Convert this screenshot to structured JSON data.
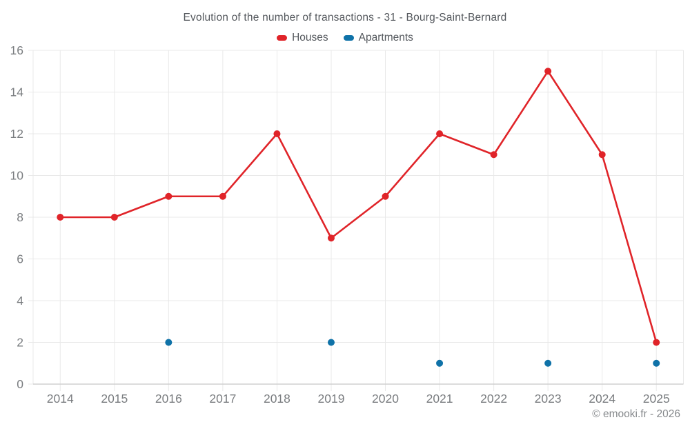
{
  "header": {
    "title": "Evolution of the number of transactions - 31 - Bourg-Saint-Bernard"
  },
  "legend": [
    {
      "label": "Houses",
      "color": "#e02429"
    },
    {
      "label": "Apartments",
      "color": "#0f72a8"
    }
  ],
  "footer": {
    "copyright": "© emooki.fr - 2026"
  },
  "colors": {
    "houses": "#e02429",
    "apartments": "#0f72a8",
    "grid": "#e9e9e9",
    "axis_line": "#cfcfcf",
    "axis_text": "#7a7d80",
    "title_text": "#54585d",
    "footer_text": "#85888b",
    "background": "#ffffff"
  },
  "chart_data": {
    "type": "line",
    "title": "Evolution of the number of transactions - 31 - Bourg-Saint-Bernard",
    "xlabel": "",
    "ylabel": "",
    "categories": [
      "2014",
      "2015",
      "2016",
      "2017",
      "2018",
      "2019",
      "2020",
      "2021",
      "2022",
      "2023",
      "2024",
      "2025"
    ],
    "series": [
      {
        "name": "Houses",
        "type": "line",
        "color": "#e02429",
        "values": [
          8,
          8,
          9,
          9,
          12,
          7,
          9,
          12,
          11,
          15,
          11,
          2
        ]
      },
      {
        "name": "Apartments",
        "type": "scatter",
        "color": "#0f72a8",
        "values": [
          null,
          null,
          2,
          null,
          null,
          2,
          null,
          1,
          null,
          1,
          null,
          1
        ]
      }
    ],
    "ylim": [
      0,
      16
    ],
    "yticks": [
      0,
      2,
      4,
      6,
      8,
      10,
      12,
      14,
      16
    ],
    "grid": true,
    "legend_position": "top"
  }
}
